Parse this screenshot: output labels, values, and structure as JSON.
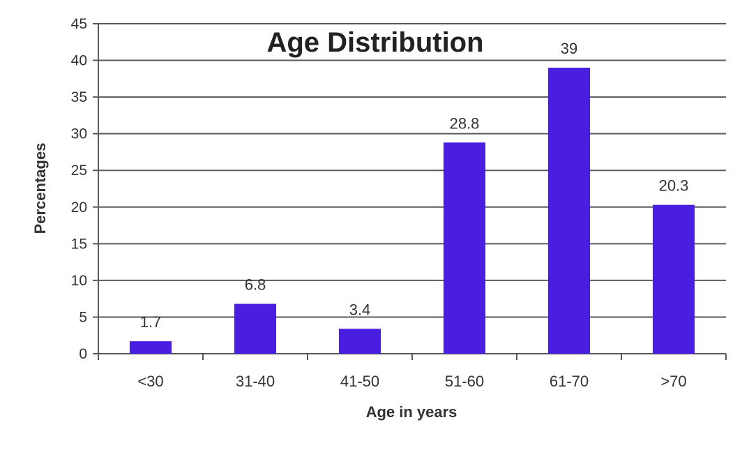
{
  "chart_data": {
    "type": "bar",
    "title": "Age Distribution",
    "xlabel": "Age in years",
    "ylabel": "Percentages",
    "categories": [
      "<30",
      "31-40",
      "41-50",
      "51-60",
      "61-70",
      ">70"
    ],
    "values": [
      1.7,
      6.8,
      3.4,
      28.8,
      39,
      20.3
    ],
    "data_labels": [
      "1.7",
      "6.8",
      "3.4",
      "28.8",
      "39",
      "20.3"
    ],
    "ylim": [
      0,
      45
    ],
    "yticks": [
      0,
      5,
      10,
      15,
      20,
      25,
      30,
      35,
      40,
      45
    ],
    "grid": true,
    "legend": "none",
    "bar_color": "#4a1ee0"
  }
}
